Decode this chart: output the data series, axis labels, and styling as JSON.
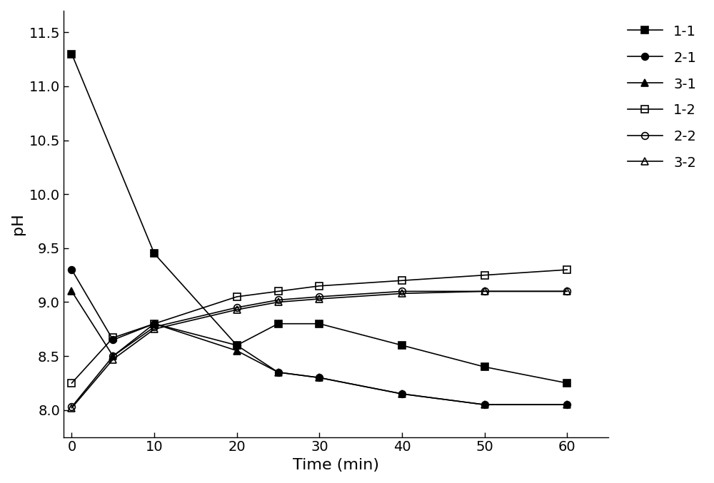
{
  "series": {
    "1-1": {
      "x": [
        0,
        10,
        20,
        25,
        30,
        40,
        50,
        60
      ],
      "y": [
        11.3,
        9.45,
        8.6,
        8.8,
        8.8,
        8.6,
        8.4,
        8.25
      ],
      "marker": "s",
      "fillstyle": "full",
      "color": "#000000",
      "linestyle": "-",
      "linewidth": 1.2,
      "markersize": 7
    },
    "2-1": {
      "x": [
        0,
        5,
        10,
        20,
        25,
        30,
        40,
        50,
        60
      ],
      "y": [
        9.3,
        8.65,
        8.8,
        8.6,
        8.35,
        8.3,
        8.15,
        8.05,
        8.05
      ],
      "marker": "o",
      "fillstyle": "full",
      "color": "#000000",
      "linestyle": "-",
      "linewidth": 1.2,
      "markersize": 7
    },
    "3-1": {
      "x": [
        0,
        5,
        10,
        20,
        25,
        30,
        40,
        50,
        60
      ],
      "y": [
        9.1,
        8.5,
        8.8,
        8.55,
        8.35,
        8.3,
        8.15,
        8.05,
        8.05
      ],
      "marker": "^",
      "fillstyle": "full",
      "color": "#000000",
      "linestyle": "-",
      "linewidth": 1.2,
      "markersize": 7
    },
    "1-2": {
      "x": [
        0,
        5,
        10,
        20,
        25,
        30,
        40,
        50,
        60
      ],
      "y": [
        8.25,
        8.67,
        8.8,
        9.05,
        9.1,
        9.15,
        9.2,
        9.25,
        9.3
      ],
      "marker": "s",
      "fillstyle": "none",
      "color": "#000000",
      "linestyle": "-",
      "linewidth": 1.2,
      "markersize": 7
    },
    "2-2": {
      "x": [
        0,
        5,
        10,
        20,
        25,
        30,
        40,
        50,
        60
      ],
      "y": [
        8.03,
        8.5,
        8.77,
        8.95,
        9.02,
        9.05,
        9.1,
        9.1,
        9.1
      ],
      "marker": "o",
      "fillstyle": "none",
      "color": "#000000",
      "linestyle": "-",
      "linewidth": 1.2,
      "markersize": 7
    },
    "3-2": {
      "x": [
        0,
        5,
        10,
        20,
        25,
        30,
        40,
        50,
        60
      ],
      "y": [
        8.02,
        8.47,
        8.75,
        8.93,
        9.0,
        9.03,
        9.08,
        9.1,
        9.1
      ],
      "marker": "^",
      "fillstyle": "none",
      "color": "#000000",
      "linestyle": "-",
      "linewidth": 1.2,
      "markersize": 7
    }
  },
  "xlabel": "Time (min)",
  "ylabel": "pH",
  "xlim": [
    -1,
    65
  ],
  "ylim": [
    7.75,
    11.7
  ],
  "xticks": [
    0,
    10,
    20,
    30,
    40,
    50,
    60
  ],
  "yticks": [
    8.0,
    8.5,
    9.0,
    9.5,
    10.0,
    10.5,
    11.0,
    11.5
  ],
  "legend_order": [
    "1-1",
    "2-1",
    "3-1",
    "1-2",
    "2-2",
    "3-2"
  ],
  "background_color": "#ffffff",
  "tick_fontsize": 14,
  "label_fontsize": 16,
  "legend_fontsize": 14
}
